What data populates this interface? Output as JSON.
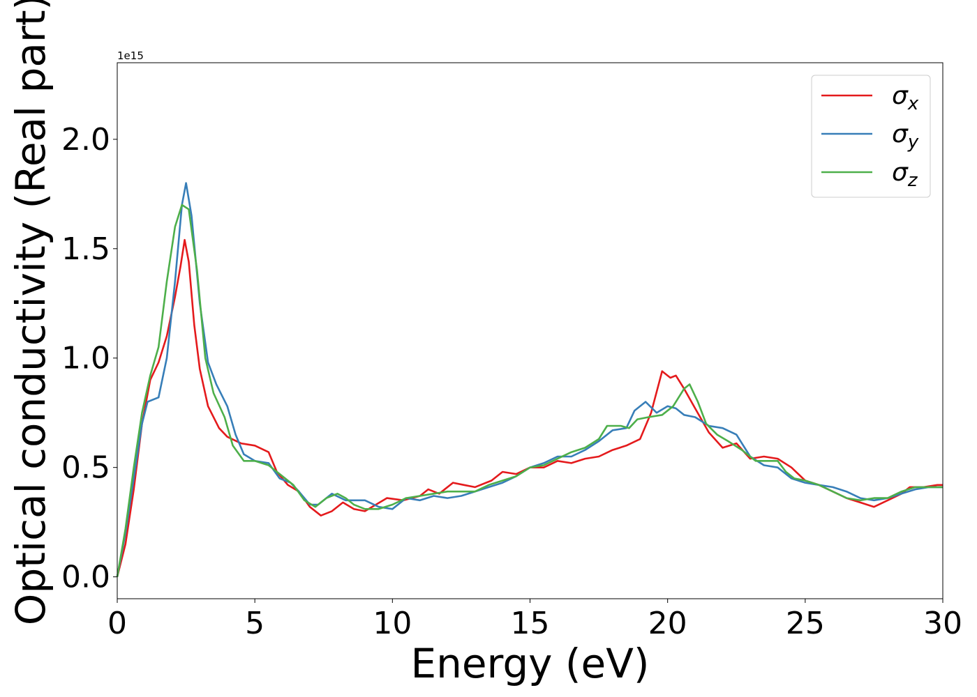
{
  "chart_data": {
    "type": "line",
    "xlabel": "Energy (eV)",
    "ylabel": "Optical conductivity (Real part)",
    "offset_label": "1e15",
    "xlim": [
      0,
      30
    ],
    "ylim": [
      -0.1,
      2.35
    ],
    "xticks": [
      0,
      5,
      10,
      15,
      20,
      25,
      30
    ],
    "xtick_labels": [
      "0",
      "5",
      "10",
      "15",
      "20",
      "25",
      "30"
    ],
    "yticks": [
      0.0,
      0.5,
      1.0,
      1.5,
      2.0
    ],
    "ytick_labels": [
      "0.0",
      "0.5",
      "1.0",
      "1.5",
      "2.0"
    ],
    "grid": false,
    "legend_position": "top-right",
    "series": [
      {
        "name": "σx",
        "sym": "σ",
        "sub": "x",
        "color": "#e41a1c",
        "points": [
          [
            0,
            0
          ],
          [
            0.3,
            0.15
          ],
          [
            0.6,
            0.4
          ],
          [
            0.9,
            0.7
          ],
          [
            1.2,
            0.9
          ],
          [
            1.5,
            0.98
          ],
          [
            1.8,
            1.1
          ],
          [
            2.1,
            1.28
          ],
          [
            2.3,
            1.42
          ],
          [
            2.45,
            1.54
          ],
          [
            2.6,
            1.44
          ],
          [
            2.8,
            1.15
          ],
          [
            3.0,
            0.95
          ],
          [
            3.3,
            0.78
          ],
          [
            3.7,
            0.68
          ],
          [
            4.0,
            0.64
          ],
          [
            4.5,
            0.61
          ],
          [
            5.0,
            0.6
          ],
          [
            5.5,
            0.57
          ],
          [
            5.8,
            0.48
          ],
          [
            6.2,
            0.42
          ],
          [
            6.6,
            0.39
          ],
          [
            7.0,
            0.32
          ],
          [
            7.4,
            0.28
          ],
          [
            7.8,
            0.3
          ],
          [
            8.2,
            0.34
          ],
          [
            8.6,
            0.31
          ],
          [
            9.0,
            0.3
          ],
          [
            9.4,
            0.33
          ],
          [
            9.8,
            0.36
          ],
          [
            10.4,
            0.35
          ],
          [
            11.0,
            0.37
          ],
          [
            11.3,
            0.4
          ],
          [
            11.7,
            0.38
          ],
          [
            12.2,
            0.43
          ],
          [
            12.6,
            0.42
          ],
          [
            13.0,
            0.41
          ],
          [
            13.6,
            0.44
          ],
          [
            14.0,
            0.48
          ],
          [
            14.5,
            0.47
          ],
          [
            15.0,
            0.5
          ],
          [
            15.5,
            0.5
          ],
          [
            16.0,
            0.53
          ],
          [
            16.5,
            0.52
          ],
          [
            17.0,
            0.54
          ],
          [
            17.5,
            0.55
          ],
          [
            18.0,
            0.58
          ],
          [
            18.5,
            0.6
          ],
          [
            19.0,
            0.63
          ],
          [
            19.4,
            0.75
          ],
          [
            19.8,
            0.94
          ],
          [
            20.1,
            0.91
          ],
          [
            20.3,
            0.92
          ],
          [
            20.6,
            0.86
          ],
          [
            21.0,
            0.77
          ],
          [
            21.5,
            0.66
          ],
          [
            22.0,
            0.59
          ],
          [
            22.5,
            0.61
          ],
          [
            23.0,
            0.54
          ],
          [
            23.5,
            0.55
          ],
          [
            24.0,
            0.54
          ],
          [
            24.5,
            0.5
          ],
          [
            25.0,
            0.44
          ],
          [
            25.5,
            0.42
          ],
          [
            26.0,
            0.39
          ],
          [
            26.5,
            0.36
          ],
          [
            27.0,
            0.34
          ],
          [
            27.5,
            0.32
          ],
          [
            28.0,
            0.35
          ],
          [
            28.5,
            0.38
          ],
          [
            28.8,
            0.41
          ],
          [
            29.3,
            0.41
          ],
          [
            29.8,
            0.42
          ],
          [
            30.0,
            0.42
          ]
        ]
      },
      {
        "name": "σy",
        "sym": "σ",
        "sub": "y",
        "color": "#377eb8",
        "points": [
          [
            0,
            0
          ],
          [
            0.3,
            0.2
          ],
          [
            0.6,
            0.45
          ],
          [
            0.9,
            0.7
          ],
          [
            1.1,
            0.8
          ],
          [
            1.5,
            0.82
          ],
          [
            1.8,
            1.0
          ],
          [
            2.1,
            1.35
          ],
          [
            2.35,
            1.7
          ],
          [
            2.5,
            1.8
          ],
          [
            2.7,
            1.65
          ],
          [
            3.0,
            1.25
          ],
          [
            3.3,
            0.98
          ],
          [
            3.6,
            0.88
          ],
          [
            4.0,
            0.78
          ],
          [
            4.3,
            0.65
          ],
          [
            4.6,
            0.56
          ],
          [
            5.0,
            0.53
          ],
          [
            5.5,
            0.52
          ],
          [
            5.9,
            0.45
          ],
          [
            6.3,
            0.43
          ],
          [
            6.6,
            0.39
          ],
          [
            7.0,
            0.33
          ],
          [
            7.3,
            0.33
          ],
          [
            7.8,
            0.38
          ],
          [
            8.3,
            0.35
          ],
          [
            9.0,
            0.35
          ],
          [
            9.5,
            0.32
          ],
          [
            10.0,
            0.31
          ],
          [
            10.5,
            0.36
          ],
          [
            11.0,
            0.35
          ],
          [
            11.5,
            0.37
          ],
          [
            12.0,
            0.36
          ],
          [
            12.5,
            0.37
          ],
          [
            13.0,
            0.39
          ],
          [
            13.5,
            0.41
          ],
          [
            14.0,
            0.43
          ],
          [
            14.5,
            0.46
          ],
          [
            15.0,
            0.5
          ],
          [
            15.5,
            0.52
          ],
          [
            16.0,
            0.55
          ],
          [
            16.5,
            0.55
          ],
          [
            17.0,
            0.58
          ],
          [
            17.5,
            0.62
          ],
          [
            18.0,
            0.67
          ],
          [
            18.5,
            0.68
          ],
          [
            18.8,
            0.76
          ],
          [
            19.2,
            0.8
          ],
          [
            19.6,
            0.75
          ],
          [
            20.0,
            0.78
          ],
          [
            20.3,
            0.77
          ],
          [
            20.6,
            0.74
          ],
          [
            21.0,
            0.73
          ],
          [
            21.5,
            0.69
          ],
          [
            22.0,
            0.68
          ],
          [
            22.5,
            0.65
          ],
          [
            23.0,
            0.55
          ],
          [
            23.5,
            0.51
          ],
          [
            24.0,
            0.5
          ],
          [
            24.5,
            0.45
          ],
          [
            25.0,
            0.43
          ],
          [
            25.5,
            0.42
          ],
          [
            26.0,
            0.41
          ],
          [
            26.5,
            0.39
          ],
          [
            27.0,
            0.36
          ],
          [
            27.5,
            0.35
          ],
          [
            28.0,
            0.36
          ],
          [
            28.5,
            0.38
          ],
          [
            29.0,
            0.4
          ],
          [
            29.5,
            0.41
          ],
          [
            30.0,
            0.41
          ]
        ]
      },
      {
        "name": "σz",
        "sym": "σ",
        "sub": "z",
        "color": "#4daf4a",
        "points": [
          [
            0,
            0
          ],
          [
            0.3,
            0.22
          ],
          [
            0.6,
            0.5
          ],
          [
            0.9,
            0.75
          ],
          [
            1.2,
            0.92
          ],
          [
            1.5,
            1.05
          ],
          [
            1.8,
            1.35
          ],
          [
            2.1,
            1.6
          ],
          [
            2.35,
            1.7
          ],
          [
            2.6,
            1.68
          ],
          [
            2.9,
            1.4
          ],
          [
            3.2,
            1.0
          ],
          [
            3.5,
            0.84
          ],
          [
            3.9,
            0.73
          ],
          [
            4.2,
            0.6
          ],
          [
            4.6,
            0.53
          ],
          [
            5.0,
            0.53
          ],
          [
            5.5,
            0.51
          ],
          [
            6.0,
            0.46
          ],
          [
            6.4,
            0.42
          ],
          [
            6.8,
            0.35
          ],
          [
            7.2,
            0.32
          ],
          [
            7.6,
            0.36
          ],
          [
            8.0,
            0.38
          ],
          [
            8.3,
            0.36
          ],
          [
            8.6,
            0.33
          ],
          [
            9.0,
            0.31
          ],
          [
            9.5,
            0.31
          ],
          [
            10.0,
            0.33
          ],
          [
            10.5,
            0.36
          ],
          [
            11.0,
            0.37
          ],
          [
            11.5,
            0.38
          ],
          [
            12.0,
            0.39
          ],
          [
            12.5,
            0.39
          ],
          [
            13.0,
            0.39
          ],
          [
            13.5,
            0.42
          ],
          [
            14.0,
            0.44
          ],
          [
            14.5,
            0.46
          ],
          [
            15.0,
            0.5
          ],
          [
            15.5,
            0.51
          ],
          [
            16.0,
            0.54
          ],
          [
            16.5,
            0.57
          ],
          [
            17.0,
            0.59
          ],
          [
            17.5,
            0.63
          ],
          [
            17.8,
            0.69
          ],
          [
            18.3,
            0.69
          ],
          [
            18.6,
            0.68
          ],
          [
            18.9,
            0.72
          ],
          [
            19.3,
            0.73
          ],
          [
            19.8,
            0.74
          ],
          [
            20.2,
            0.78
          ],
          [
            20.6,
            0.86
          ],
          [
            20.8,
            0.88
          ],
          [
            21.1,
            0.8
          ],
          [
            21.4,
            0.7
          ],
          [
            21.8,
            0.65
          ],
          [
            22.2,
            0.62
          ],
          [
            22.7,
            0.58
          ],
          [
            23.2,
            0.53
          ],
          [
            23.6,
            0.53
          ],
          [
            24.0,
            0.53
          ],
          [
            24.3,
            0.48
          ],
          [
            24.6,
            0.45
          ],
          [
            25.0,
            0.44
          ],
          [
            25.5,
            0.42
          ],
          [
            26.0,
            0.39
          ],
          [
            26.5,
            0.36
          ],
          [
            27.0,
            0.35
          ],
          [
            27.5,
            0.36
          ],
          [
            28.0,
            0.36
          ],
          [
            28.5,
            0.39
          ],
          [
            29.0,
            0.41
          ],
          [
            29.5,
            0.41
          ],
          [
            30.0,
            0.41
          ]
        ]
      }
    ]
  }
}
